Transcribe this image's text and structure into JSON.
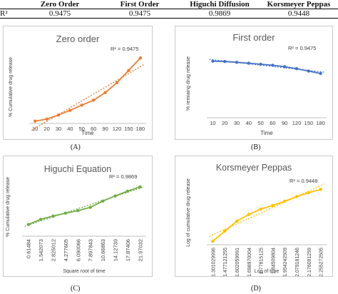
{
  "table": {
    "headers": [
      "",
      "Zero Order",
      "First Order",
      "Higuchi Diffusion",
      "Korsmeyer Peppas"
    ],
    "row": [
      "R²",
      "0.9475",
      "0.9475",
      "0.9869",
      "0.9448"
    ]
  },
  "chart_data": [
    {
      "type": "line",
      "title": "Zero order",
      "panel_label": "(A)",
      "xlabel": "Time",
      "ylabel": "% Cumulative drug release",
      "r2": "R² = 0.9475",
      "color": "#ED7D31",
      "trendline": true,
      "grid": false,
      "categories": [
        "10",
        "20",
        "30",
        "40",
        "50",
        "60",
        "90",
        "120",
        "150",
        "180"
      ],
      "values": [
        0.8,
        1.5,
        2.9,
        4.5,
        6.3,
        8.0,
        10.6,
        14.0,
        18.2,
        22.5
      ],
      "ylim": [
        0,
        25
      ]
    },
    {
      "type": "line",
      "title": "First order",
      "panel_label": "(B)",
      "xlabel": "Time",
      "ylabel": "% remiaing drug release",
      "r2": "R² = 0.9475",
      "color": "#4472C4",
      "trendline": true,
      "grid": false,
      "categories": [
        "10",
        "20",
        "30",
        "40",
        "50",
        "60",
        "90",
        "120",
        "150",
        "180"
      ],
      "values": [
        99.2,
        98.5,
        97.1,
        95.5,
        93.7,
        92.0,
        89.4,
        86.0,
        81.8,
        77.5
      ],
      "ylim": [
        0,
        120
      ]
    },
    {
      "type": "line",
      "title": "Higuchi Equation",
      "panel_label": "(C)",
      "xlabel": "Square root of time",
      "ylabel": "% Cumulative drug release",
      "r2": "R² = 0.9869",
      "color": "#70AD47",
      "trendline": true,
      "grid": false,
      "categories": [
        "0.61484",
        "1.542073",
        "2.825012",
        "4.277605",
        "6.090066",
        "7.897843",
        "10.66863",
        "14.12739",
        "17.87406",
        "21.97032"
      ],
      "values": [
        3.2,
        4.6,
        5.5,
        6.3,
        7.0,
        7.9,
        9.6,
        11.0,
        12.3,
        13.5
      ],
      "ylim": [
        0,
        16
      ]
    },
    {
      "type": "line",
      "title": "Korsmeyer Peppas",
      "panel_label": "(D)",
      "xlabel": "Log of time",
      "ylabel": "Log of cumulative drug release",
      "r2": "R² = 0.9448",
      "color": "#FFC000",
      "trendline": true,
      "grid": false,
      "categories": [
        "1.301029996",
        "1.477121255",
        "1.602059991",
        "1.698970004",
        "1.77815125",
        "1.84509804",
        "1.954242509",
        "2.079181246",
        "2.176091259",
        "2.255272505"
      ],
      "values": [
        -0.1,
        0.18,
        0.46,
        0.65,
        0.8,
        0.9,
        1.02,
        1.15,
        1.26,
        1.35
      ],
      "ylim": [
        -0.2,
        1.6
      ]
    }
  ]
}
